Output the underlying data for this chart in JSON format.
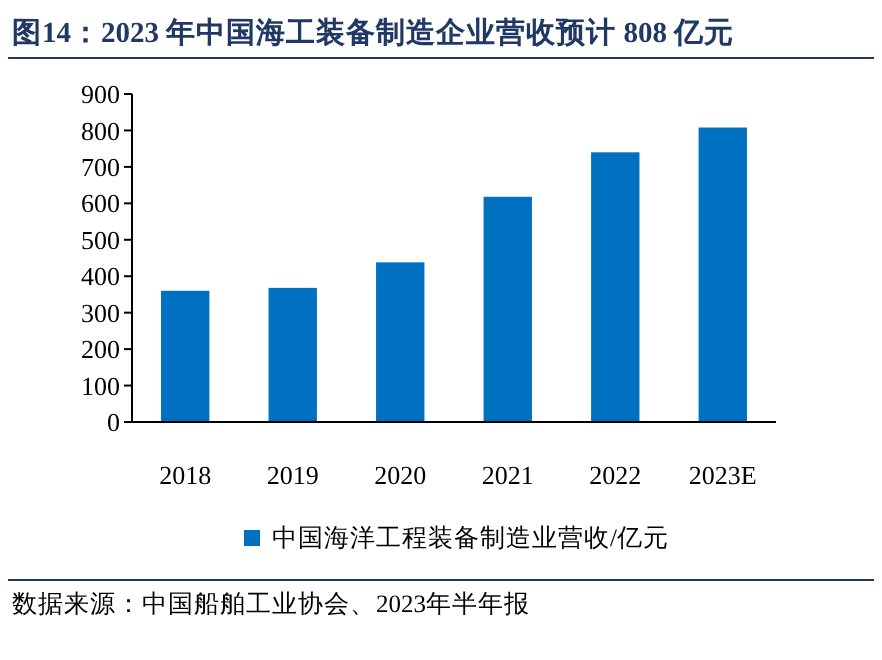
{
  "chart_data": {
    "type": "bar",
    "title": "图14：2023 年中国海工装备制造企业营收预计 808 亿元",
    "categories": [
      "2018",
      "2019",
      "2020",
      "2021",
      "2022",
      "2023E"
    ],
    "series": [
      {
        "name": "中国海洋工程装备制造业营收/亿元",
        "color": "#0070c0",
        "values": [
          360,
          368,
          438,
          618,
          740,
          808
        ]
      }
    ],
    "ylim": [
      0,
      900
    ],
    "yticks": [
      0,
      100,
      200,
      300,
      400,
      500,
      600,
      700,
      800,
      900
    ],
    "grid": false,
    "legend": "bottom",
    "annotations": [
      "数据来源：中国船舶工业协会、2023年半年报"
    ]
  }
}
